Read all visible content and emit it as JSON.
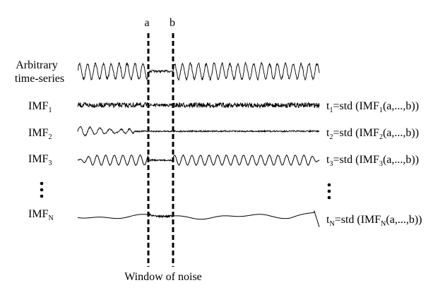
{
  "diagram": {
    "markers": {
      "a": "a",
      "b": "b"
    },
    "window_caption": "Window of noise",
    "series_label": {
      "line1": "Arbitrary",
      "line2": "time-series"
    },
    "imf_prefix": "IMF",
    "rows": [
      {
        "sub": "1",
        "t_var": "t",
        "t_sub": "1",
        "formula_mid": "=std (IMF",
        "f_sub": "1",
        "formula_end": "(a,...,b))"
      },
      {
        "sub": "2",
        "t_var": "t",
        "t_sub": "2",
        "formula_mid": "=std (IMF",
        "f_sub": "2",
        "formula_end": "(a,...,b))"
      },
      {
        "sub": "3",
        "t_var": "t",
        "t_sub": "3",
        "formula_mid": "=std (IMF",
        "f_sub": "3",
        "formula_end": "(a,...,b))"
      },
      {
        "sub": "N",
        "t_var": "t",
        "t_sub": "N",
        "formula_mid": "=std (IMF",
        "f_sub": "N",
        "formula_end": "(a,...,b))"
      }
    ],
    "ellipsis_rows": 2
  }
}
